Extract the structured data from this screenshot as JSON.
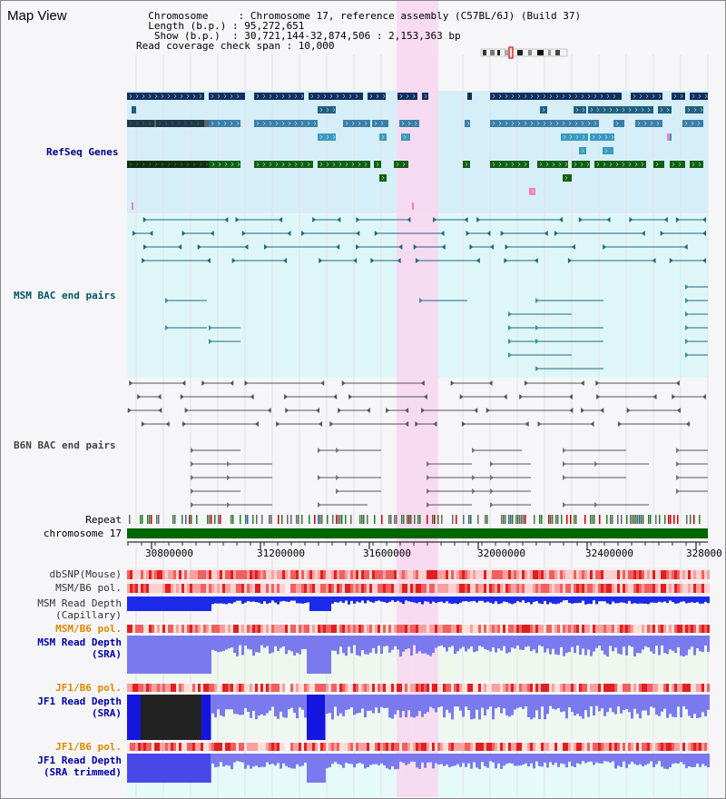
{
  "header": {
    "title": "Map View",
    "info_lines": [
      "  Chromosome     : Chromosome 17, reference assembly (C57BL/6J) (Build 37)",
      "  Length (b.p.) : 95,272,651",
      "   Show (b.p.)  : 30,721,144-32,874,506 : 2,153,363 bp",
      "Read coverage check span : 10,000"
    ]
  },
  "tracks": {
    "refseq": "RefSeq Genes",
    "msm_bac": "MSM BAC end pairs",
    "b6n_bac": "B6N BAC end pairs",
    "repeat": "Repeat",
    "chromosome": "chromosome 17",
    "dbsnp": "dbSNP(Mouse)",
    "msm_b6_pol": "MSM/B6 pol.",
    "msm_depth_cap_1": "MSM Read Depth",
    "msm_depth_cap_2": "(Capillary)",
    "msm_b6_pol_2": "MSM/B6 pol.",
    "msm_depth_sra_1": "MSM Read Depth",
    "msm_depth_sra_2": "(SRA)",
    "jf1_b6_pol": "JF1/B6 pol.",
    "jf1_depth_sra_1": "JF1 Read Depth",
    "jf1_depth_sra_2": "(SRA)",
    "jf1_b6_pol_2": "JF1/B6 pol.",
    "jf1_depth_trim_1": "JF1 Read Depth",
    "jf1_depth_trim_2": "(SRA trimmed)"
  },
  "axis": {
    "ticks": [
      "30800000",
      "31200000",
      "31600000",
      "32000000",
      "32400000",
      "328000"
    ]
  },
  "colors": {
    "refseq_label": "#000088",
    "msm_bac_label": "#005566",
    "b6n_bac_label": "#444444",
    "pol_orange": "#dd8800",
    "depth_blue": "#0000aa",
    "highlight": "#f8d8f0",
    "chromosome_bar": "#006600"
  }
}
